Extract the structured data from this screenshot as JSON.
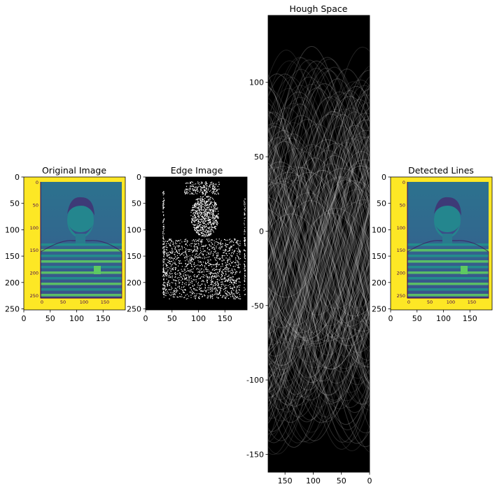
{
  "chart_data": [
    {
      "type": "image",
      "title": "Original Image",
      "xticks": [
        "0",
        "50",
        "100",
        "150"
      ],
      "yticks": [
        "0",
        "50",
        "100",
        "150",
        "200",
        "250"
      ],
      "xlim": [
        0,
        192
      ],
      "ylim": [
        252,
        0
      ],
      "inner_image": {
        "xticks": [
          "0",
          "50",
          "100",
          "150"
        ],
        "yticks": [
          "0",
          "50",
          "100",
          "150",
          "200",
          "250"
        ]
      }
    },
    {
      "type": "image",
      "title": "Edge Image",
      "xticks": [
        "0",
        "50",
        "100",
        "150"
      ],
      "yticks": [
        "0",
        "50",
        "100",
        "150",
        "200",
        "250"
      ],
      "xlim": [
        0,
        192
      ],
      "ylim": [
        252,
        0
      ]
    },
    {
      "type": "heatmap",
      "title": "Hough Space",
      "xticks": [
        "150",
        "100",
        "50",
        "0"
      ],
      "yticks": [
        "-150",
        "-100",
        "-50",
        "0",
        "50",
        "100"
      ],
      "xlim": [
        180,
        0
      ],
      "ylim": [
        -162,
        145
      ],
      "colormap": "gray"
    },
    {
      "type": "image",
      "title": "Detected Lines",
      "xticks": [
        "0",
        "50",
        "100",
        "150"
      ],
      "yticks": [
        "0",
        "50",
        "100",
        "150",
        "200",
        "250"
      ],
      "xlim": [
        0,
        192
      ],
      "ylim": [
        252,
        0
      ],
      "inner_image": {
        "xticks": [
          "0",
          "50",
          "100",
          "150"
        ],
        "yticks": [
          "0",
          "50",
          "100",
          "150",
          "200",
          "250"
        ]
      }
    }
  ],
  "colors": {
    "viridis_yellow": "#fde725",
    "viridis_dark": "#440154",
    "viridis_teal": "#21918c",
    "viridis_green": "#5ec962",
    "hough_bg": "#000000",
    "hough_curve": "#ffffff"
  }
}
